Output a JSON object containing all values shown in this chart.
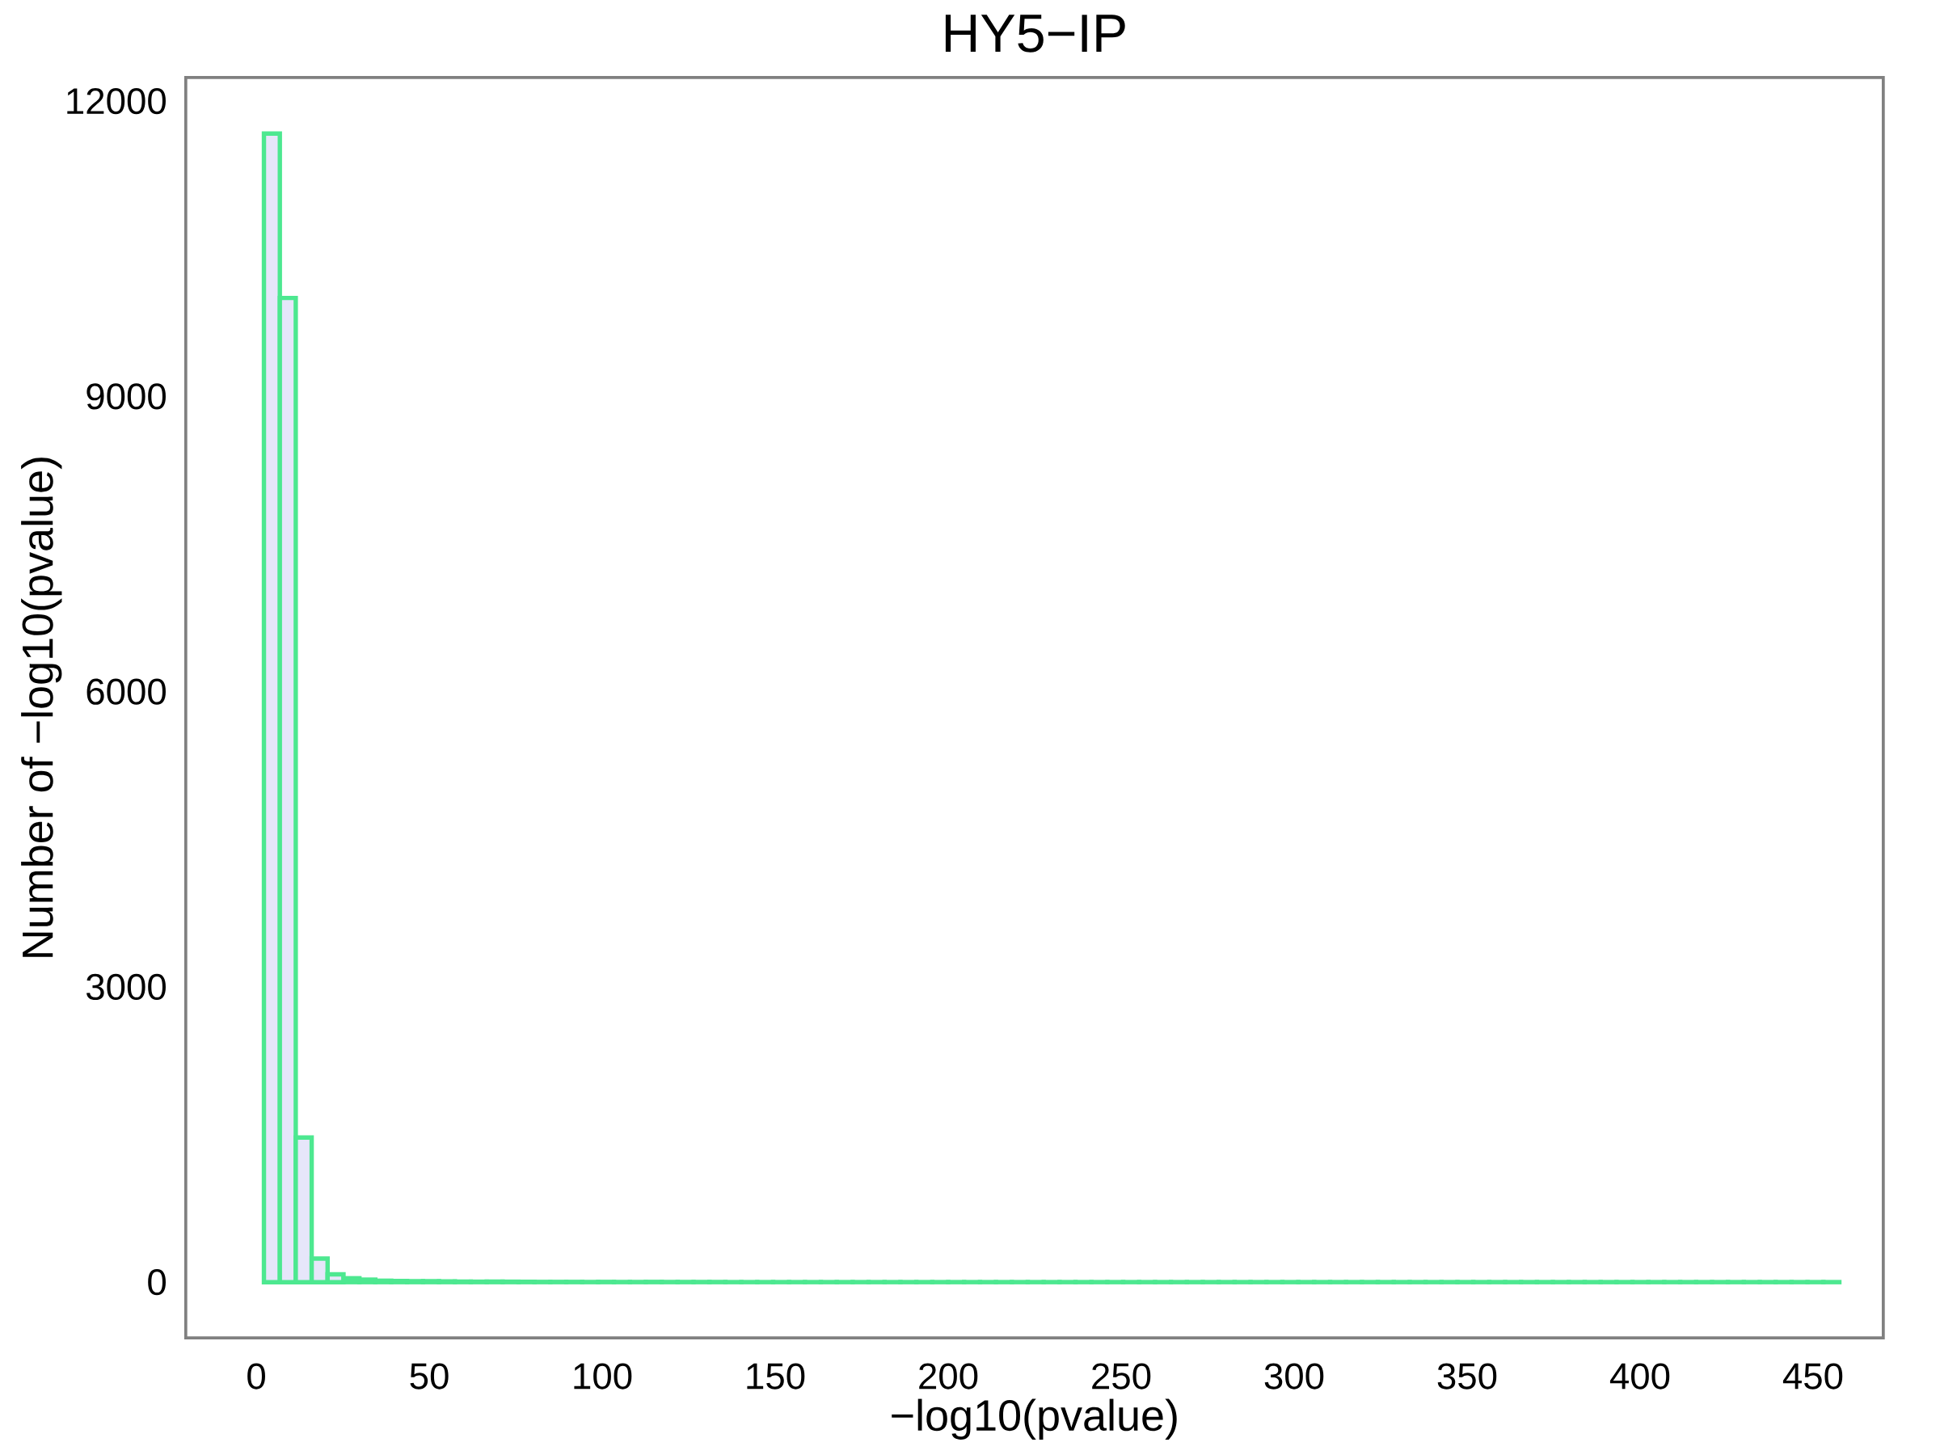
{
  "chart_data": {
    "type": "histogram",
    "title": "HY5−IP",
    "xlabel": "−log10(pvalue)",
    "ylabel": "Number of −log10(pvalue)",
    "color": "#4de890",
    "bins": [
      2.2,
      6.8,
      11.4,
      16.0,
      20.6,
      25.2,
      29.8,
      34.4,
      39.0,
      43.6,
      48.2,
      52.8,
      57.4,
      62.0,
      66.6,
      71.2,
      75.8,
      80.4,
      85.0,
      89.6,
      94.2,
      98.8,
      103.4,
      108.0,
      112.6,
      117.2,
      121.8,
      126.4,
      131.0,
      135.6,
      140.2,
      144.8,
      149.4,
      154.0,
      158.6,
      163.2,
      167.8,
      172.4,
      177.0,
      181.6,
      186.2,
      190.8,
      195.4,
      200.0,
      204.6,
      209.2,
      213.8,
      218.4,
      223.0,
      227.6,
      232.2,
      236.8,
      241.4,
      246.0,
      250.6,
      255.2,
      259.8,
      264.4,
      269.0,
      273.6,
      278.2,
      282.8,
      287.4,
      292.0,
      296.6,
      301.2,
      305.8,
      310.4,
      315.0,
      319.6,
      324.2,
      328.8,
      333.4,
      338.0,
      342.6,
      347.2,
      351.8,
      356.4,
      361.0,
      365.6,
      370.2,
      374.8,
      379.4,
      384.0,
      388.6,
      393.2,
      397.8,
      402.4,
      407.0,
      411.6,
      416.2,
      420.8,
      425.4,
      430.0,
      434.6,
      439.2,
      443.8,
      448.4,
      453.0,
      457.6
    ],
    "values": [
      11670,
      10000,
      1470,
      240,
      80,
      40,
      26,
      15,
      12,
      10,
      10,
      8,
      6,
      5,
      6,
      5,
      4,
      3,
      3,
      3,
      2,
      3,
      2,
      2,
      3,
      2,
      2,
      2,
      2,
      1,
      1,
      1,
      1,
      1,
      1,
      1,
      1,
      1,
      1,
      1,
      1,
      1,
      1,
      1,
      1,
      1,
      1,
      1,
      1,
      1,
      1,
      1,
      1,
      1,
      1,
      1,
      1,
      1,
      1,
      1,
      1,
      1,
      1,
      1,
      1,
      1,
      1,
      1,
      1,
      1,
      1,
      1,
      1,
      1,
      1,
      1,
      1,
      1,
      1,
      1,
      1,
      1,
      1,
      1,
      1,
      1,
      1,
      1,
      1,
      1,
      1,
      1,
      1,
      1,
      1,
      1,
      1,
      1,
      1
    ],
    "xlim": [
      -20.4,
      470.3
    ],
    "ylim": [
      -566,
      12239
    ],
    "xticks": [
      0,
      50,
      100,
      150,
      200,
      250,
      300,
      350,
      400,
      450
    ],
    "yticks": [
      0,
      3000,
      6000,
      9000,
      12000
    ],
    "grid": false
  }
}
